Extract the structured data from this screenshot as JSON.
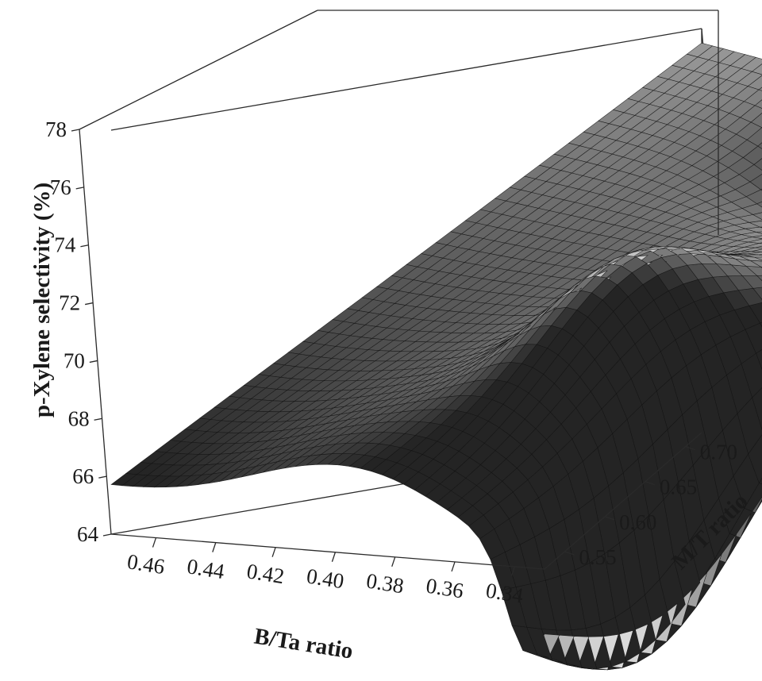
{
  "chart_data": {
    "type": "surface3d",
    "title": "",
    "xlabel": "B/Ta ratio",
    "ylabel": "M/T ratio",
    "zlabel": "p-Xylene selectivity (%)",
    "x_ticks": [
      "0.46",
      "0.44",
      "0.42",
      "0.40",
      "0.38",
      "0.36",
      "0.34"
    ],
    "y_ticks": [
      "0.55",
      "0.60",
      "0.65",
      "0.70"
    ],
    "z_ticks": [
      "64",
      "66",
      "68",
      "70",
      "72",
      "74",
      "76",
      "78"
    ],
    "xlim": [
      0.475,
      0.33
    ],
    "ylim": [
      0.525,
      0.72
    ],
    "zlim": [
      64,
      78
    ],
    "grid_resolution": 40,
    "surface_corners": {
      "x0.475_y0.525": 65.6,
      "x0.33_y0.525": 63.9,
      "x0.475_y0.72": 77.5,
      "x0.33_y0.72": 74.8
    },
    "features": {
      "front_edge_peak": 67.1,
      "mid_hump_peak": 71.2,
      "sharp_peak": 76.7,
      "saddle_min": 74.0
    },
    "colors": {
      "surface_low": "#1e1e1e",
      "surface_high": "#f4f4f4",
      "mesh": "#121212"
    }
  }
}
